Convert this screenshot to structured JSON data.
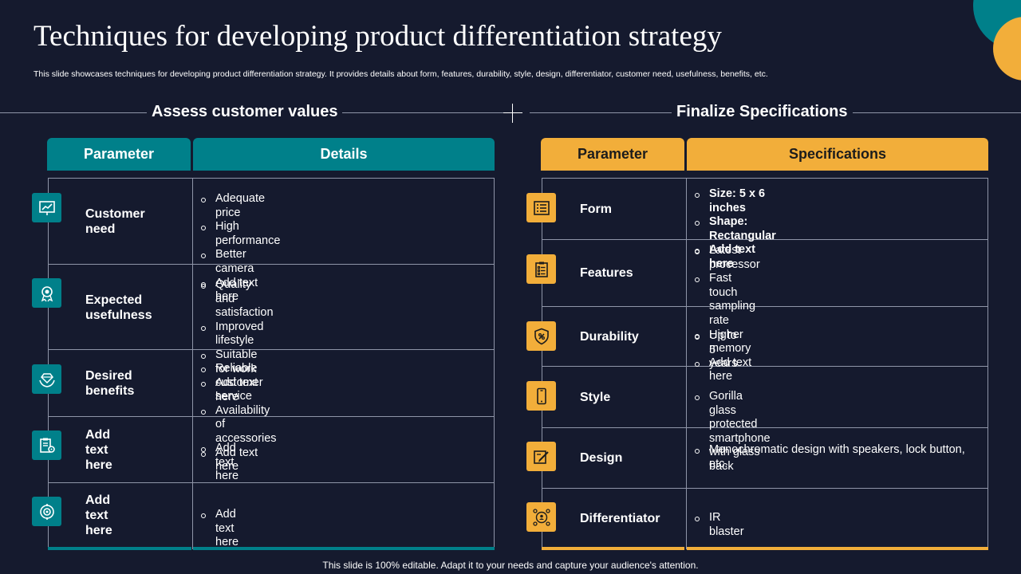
{
  "title": "Techniques for developing product differentiation strategy",
  "subtitle": "This slide showcases techniques for developing product differentiation strategy. It provides details about form, features, durability, style, design, differentiator, customer need, usefulness, benefits, etc.",
  "left": {
    "section_title": "Assess customer values",
    "header_param": "Parameter",
    "header_details": "Details",
    "rows": [
      {
        "param_line1": "Customer",
        "param_line2": "need",
        "icon": "presentation-chart-icon",
        "details": [
          "Adequate price",
          "High performance",
          "Better camera",
          "Add text here"
        ]
      },
      {
        "param_line1": "Expected",
        "param_line2": "usefulness",
        "icon": "award-ribbon-icon",
        "details": [
          "Quality and satisfaction",
          "Improved lifestyle",
          "Suitable for work",
          "Add text here"
        ]
      },
      {
        "param_line1": "Desired",
        "param_line2": "benefits",
        "icon": "diamond-hands-icon",
        "details": [
          "Reliable customer service",
          "Availability  of accessories",
          "Add text here"
        ]
      },
      {
        "param_line1": "Add",
        "param_line2": "text here",
        "icon": "clipboard-gear-icon",
        "details": [
          "Add text here"
        ]
      },
      {
        "param_line1": "Add",
        "param_line2": "text here",
        "icon": "target-settings-icon",
        "details": [
          "Add text here"
        ]
      }
    ]
  },
  "right": {
    "section_title": "Finalize Specifications",
    "header_param": "Parameter",
    "header_specs": "Specifications",
    "rows": [
      {
        "param": "Form",
        "icon": "form-document-icon",
        "bold": true,
        "details": [
          "Size: 5 x 6 inches",
          "Shape: Rectangular",
          "Add  text here"
        ]
      },
      {
        "param": "Features",
        "icon": "checklist-icon",
        "bold": false,
        "details": [
          "Latest processor",
          "Fast touch sampling rate",
          "Higher memory",
          "Add text here"
        ]
      },
      {
        "param": "Durability",
        "icon": "shield-icon",
        "bold": false,
        "details": [
          "Up to 5 years"
        ]
      },
      {
        "param": "Style",
        "icon": "smartphone-icon",
        "bold": false,
        "details": [
          "Gorilla glass protected smartphone with glass back"
        ]
      },
      {
        "param": "Design",
        "icon": "design-pencil-icon",
        "bold": false,
        "details": [
          "Monochromatic design with speakers, lock button, etc."
        ]
      },
      {
        "param": "Differentiator",
        "icon": "network-people-icon",
        "bold": false,
        "details": [
          "IR blaster"
        ]
      }
    ]
  },
  "footer": "This slide is 100% editable. Adapt it to your needs and capture your audience's attention.",
  "colors": {
    "background": "#151a2e",
    "teal": "#00808a",
    "yellow": "#f2ae3a"
  }
}
